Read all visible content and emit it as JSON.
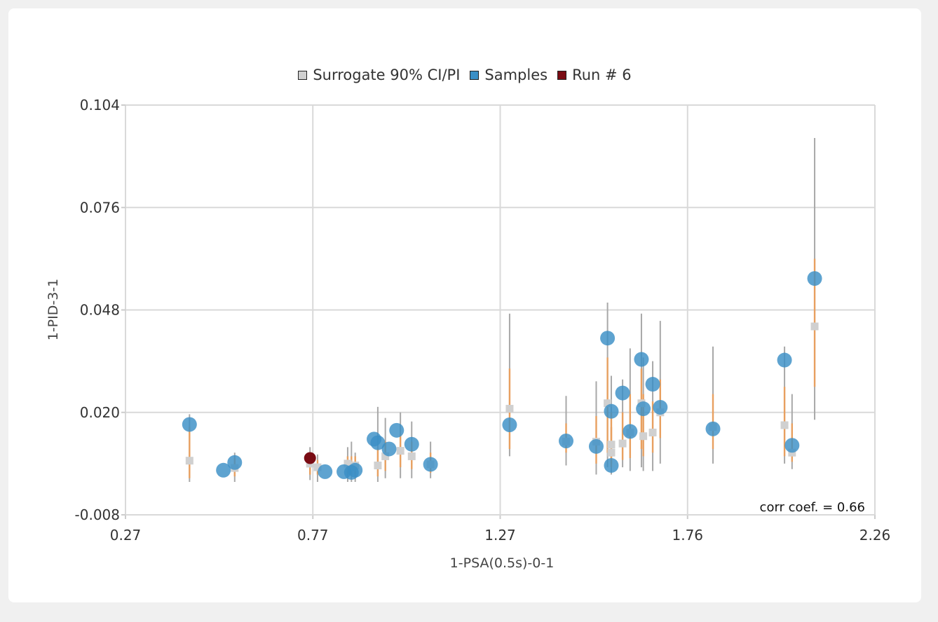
{
  "colors": {
    "surrogate": "#d0d0d0",
    "ci_line": "#e8a060",
    "pi_line": "#a8a8a8",
    "samples": "#3a8fc6",
    "run": "#7a0c14",
    "grid": "#d9d9d9"
  },
  "legend": [
    {
      "label": "Surrogate 90% CI/PI",
      "color": "#d0d0d0"
    },
    {
      "label": "Samples",
      "color": "#3a8fc6"
    },
    {
      "label": "Run # 6",
      "color": "#7a0c14"
    }
  ],
  "annotation": "corr coef. = 0.66",
  "chart_data": {
    "type": "scatter",
    "xlabel": "1-PSA(0.5s)-0-1",
    "ylabel": "1-PID-3-1",
    "xlim": [
      0.27,
      2.26
    ],
    "ylim": [
      -0.008,
      0.104
    ],
    "xticks": [
      "0.27",
      "0.77",
      "1.27",
      "1.76",
      "2.26"
    ],
    "yticks": [
      "0.104",
      "0.076",
      "0.048",
      "0.020",
      "-0.008"
    ],
    "grid": true,
    "legend_position": "top-center",
    "series": [
      {
        "name": "Samples",
        "points": [
          {
            "x": 0.44,
            "y": 0.0167
          },
          {
            "x": 0.53,
            "y": 0.0042
          },
          {
            "x": 0.56,
            "y": 0.0063
          },
          {
            "x": 0.8,
            "y": 0.0038
          },
          {
            "x": 0.85,
            "y": 0.0038
          },
          {
            "x": 0.87,
            "y": 0.0036
          },
          {
            "x": 0.88,
            "y": 0.0042
          },
          {
            "x": 0.93,
            "y": 0.0127
          },
          {
            "x": 0.94,
            "y": 0.0117
          },
          {
            "x": 0.97,
            "y": 0.01
          },
          {
            "x": 0.99,
            "y": 0.0151
          },
          {
            "x": 1.03,
            "y": 0.0113
          },
          {
            "x": 1.08,
            "y": 0.0058
          },
          {
            "x": 1.29,
            "y": 0.0166
          },
          {
            "x": 1.44,
            "y": 0.0122
          },
          {
            "x": 1.52,
            "y": 0.0107
          },
          {
            "x": 1.55,
            "y": 0.0403
          },
          {
            "x": 1.56,
            "y": 0.0203
          },
          {
            "x": 1.56,
            "y": 0.0055
          },
          {
            "x": 1.59,
            "y": 0.0253
          },
          {
            "x": 1.61,
            "y": 0.0148
          },
          {
            "x": 1.64,
            "y": 0.0345
          },
          {
            "x": 1.645,
            "y": 0.021
          },
          {
            "x": 1.67,
            "y": 0.0277
          },
          {
            "x": 1.69,
            "y": 0.0214
          },
          {
            "x": 1.83,
            "y": 0.0155
          },
          {
            "x": 2.02,
            "y": 0.0343
          },
          {
            "x": 2.04,
            "y": 0.011
          },
          {
            "x": 2.1,
            "y": 0.0566
          }
        ]
      },
      {
        "name": "Run # 6",
        "points": [
          {
            "x": 0.76,
            "y": 0.0075
          }
        ]
      },
      {
        "name": "Surrogate 90% CI/PI",
        "points": [
          {
            "x": 0.44,
            "y": 0.0068,
            "ci": [
              0.002,
              0.016
            ],
            "pi": [
              0.001,
              0.0195
            ]
          },
          {
            "x": 0.56,
            "y": 0.0048,
            "ci": [
              0.0025,
              0.0075
            ],
            "pi": [
              0.001,
              0.009
            ]
          },
          {
            "x": 0.76,
            "y": 0.006,
            "ci": [
              0.003,
              0.0085
            ],
            "pi": [
              0.0015,
              0.0105
            ]
          },
          {
            "x": 0.78,
            "y": 0.005,
            "ci": [
              0.003,
              0.007
            ],
            "pi": [
              0.001,
              0.0085
            ]
          },
          {
            "x": 0.86,
            "y": 0.006,
            "ci": [
              0.003,
              0.008
            ],
            "pi": [
              0.001,
              0.0105
            ]
          },
          {
            "x": 0.87,
            "y": 0.005,
            "ci": [
              0.003,
              0.008
            ],
            "pi": [
              0.001,
              0.012
            ]
          },
          {
            "x": 0.88,
            "y": 0.0055,
            "ci": [
              0.003,
              0.008
            ],
            "pi": [
              0.001,
              0.009
            ]
          },
          {
            "x": 0.94,
            "y": 0.0055,
            "ci": [
              0.0025,
              0.01
            ],
            "pi": [
              0.001,
              0.0215
            ]
          },
          {
            "x": 0.96,
            "y": 0.008,
            "ci": [
              0.004,
              0.012
            ],
            "pi": [
              0.002,
              0.0185
            ]
          },
          {
            "x": 1.0,
            "y": 0.0095,
            "ci": [
              0.005,
              0.014
            ],
            "pi": [
              0.002,
              0.02
            ]
          },
          {
            "x": 1.03,
            "y": 0.008,
            "ci": [
              0.0045,
              0.012
            ],
            "pi": [
              0.002,
              0.0175
            ]
          },
          {
            "x": 1.08,
            "y": 0.0058,
            "ci": [
              0.0035,
              0.009
            ],
            "pi": [
              0.002,
              0.012
            ]
          },
          {
            "x": 1.29,
            "y": 0.021,
            "ci": [
              0.01,
              0.032
            ],
            "pi": [
              0.008,
              0.047
            ]
          },
          {
            "x": 1.44,
            "y": 0.012,
            "ci": [
              0.009,
              0.017
            ],
            "pi": [
              0.0055,
              0.0245
            ]
          },
          {
            "x": 1.52,
            "y": 0.012,
            "ci": [
              0.006,
              0.019
            ],
            "pi": [
              0.003,
              0.0285
            ]
          },
          {
            "x": 1.55,
            "y": 0.0225,
            "ci": [
              0.009,
              0.035
            ],
            "pi": [
              0.005,
              0.05
            ]
          },
          {
            "x": 1.56,
            "y": 0.009,
            "ci": [
              0.005,
              0.016
            ],
            "pi": [
              0.003,
              0.0275
            ]
          },
          {
            "x": 1.56,
            "y": 0.0112,
            "ci": [
              0.006,
              0.02
            ],
            "pi": [
              0.003,
              0.03
            ]
          },
          {
            "x": 1.59,
            "y": 0.0115,
            "ci": [
              0.007,
              0.02
            ],
            "pi": [
              0.005,
              0.029
            ]
          },
          {
            "x": 1.61,
            "y": 0.0145,
            "ci": [
              0.0075,
              0.025
            ],
            "pi": [
              0.004,
              0.0375
            ]
          },
          {
            "x": 1.64,
            "y": 0.0225,
            "ci": [
              0.01,
              0.032
            ],
            "pi": [
              0.005,
              0.047
            ]
          },
          {
            "x": 1.645,
            "y": 0.0135,
            "ci": [
              0.008,
              0.025
            ],
            "pi": [
              0.004,
              0.035
            ]
          },
          {
            "x": 1.67,
            "y": 0.0145,
            "ci": [
              0.009,
              0.023
            ],
            "pi": [
              0.004,
              0.034
            ]
          },
          {
            "x": 1.69,
            "y": 0.02,
            "ci": [
              0.013,
              0.029
            ],
            "pi": [
              0.006,
              0.045
            ]
          },
          {
            "x": 1.83,
            "y": 0.016,
            "ci": [
              0.01,
              0.025
            ],
            "pi": [
              0.006,
              0.038
            ]
          },
          {
            "x": 2.02,
            "y": 0.0165,
            "ci": [
              0.008,
              0.027
            ],
            "pi": [
              0.006,
              0.038
            ]
          },
          {
            "x": 2.04,
            "y": 0.009,
            "ci": [
              0.0065,
              0.017
            ],
            "pi": [
              0.0045,
              0.025
            ]
          },
          {
            "x": 2.1,
            "y": 0.0435,
            "ci": [
              0.027,
              0.062
            ],
            "pi": [
              0.018,
              0.095
            ]
          }
        ]
      }
    ]
  }
}
